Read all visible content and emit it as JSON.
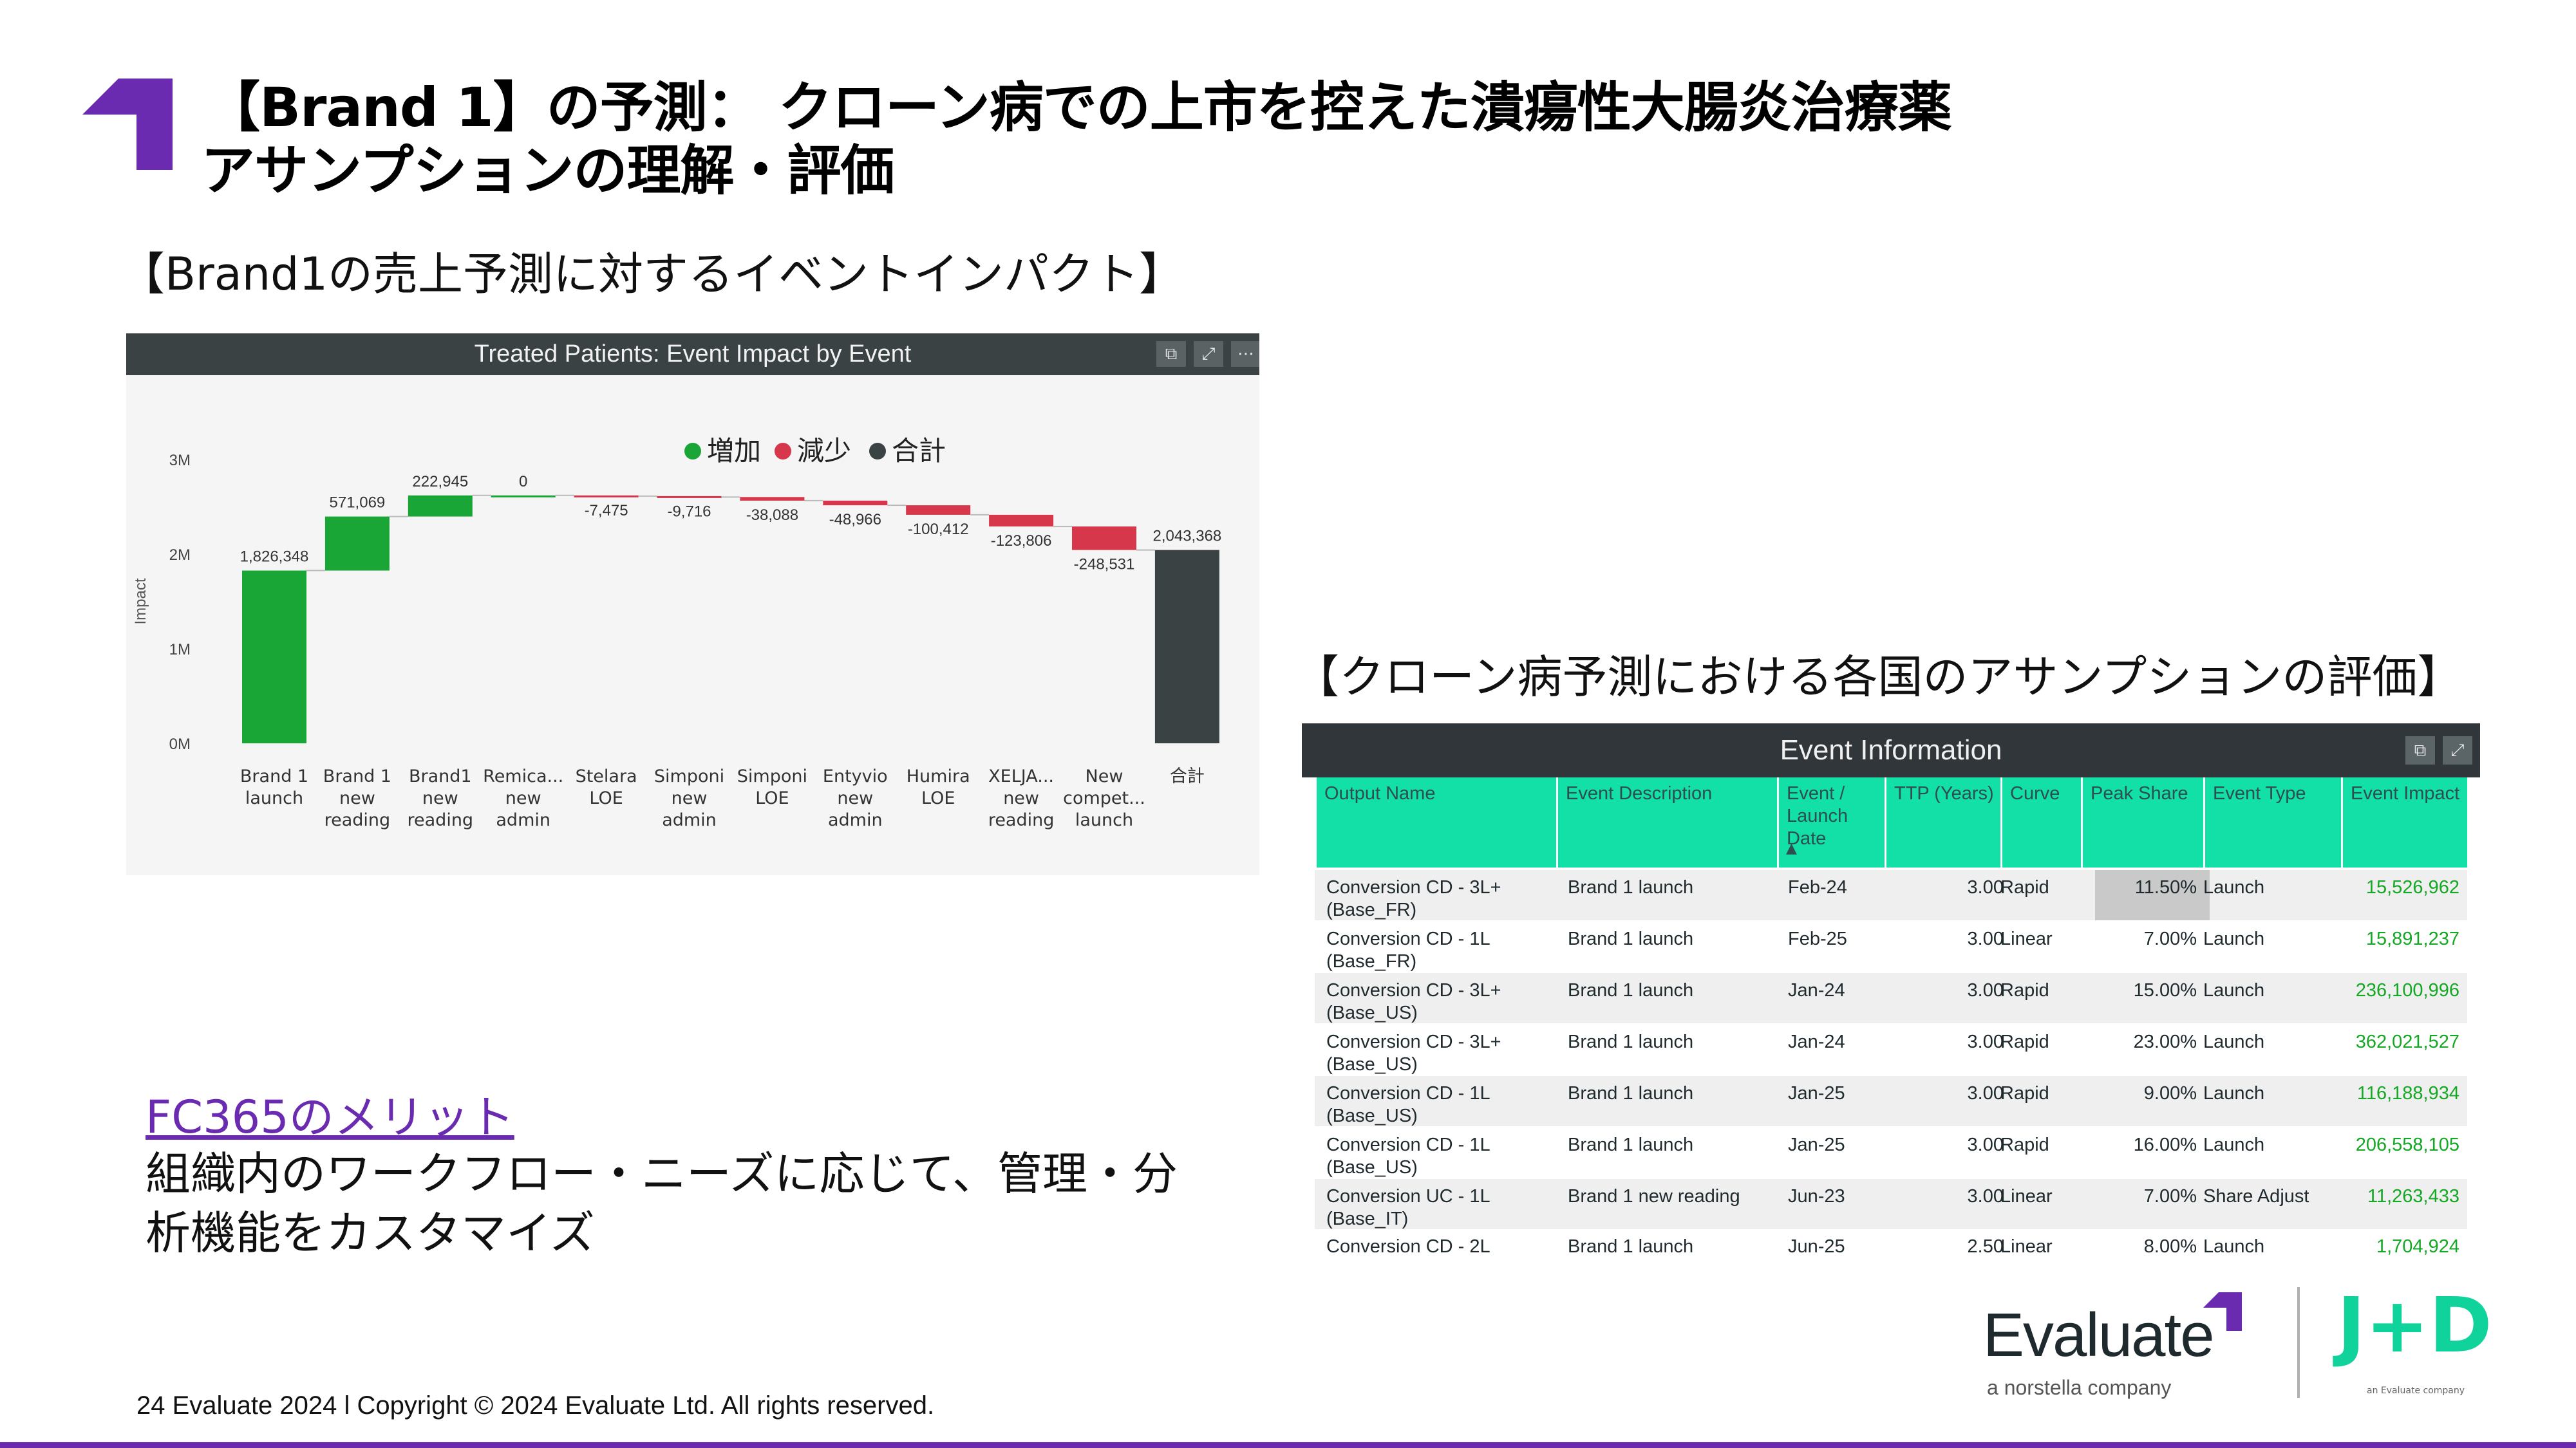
{
  "title": {
    "line1": "【Brand 1】の予測： クローン病での上市を控えた潰瘍性大腸炎治療薬",
    "line2": "アサンプションの理解・評価"
  },
  "section1_heading": "【Brand1の売上予測に対するイベントインパクト】",
  "section2_heading": "【クローン病予測における各国のアサンプションの評価】",
  "benefit": {
    "link": "FC365のメリット",
    "line1": "組織内のワークフロー・ニーズに応じて、管理・分",
    "line2": "析機能をカスタマイズ"
  },
  "footer": "24  Evaluate 2024      l      Copyright © 2024 Evaluate Ltd. All rights reserved.",
  "logos": {
    "evaluate": "Evaluate",
    "evaluate_sub": "a norstella company",
    "jd": "J+D",
    "jd_sub": "an Evaluate company"
  },
  "colors": {
    "increase": "#1aa637",
    "decrease": "#d7374a",
    "total": "#3b4244",
    "accent": "#6a2bb0",
    "table_header": "#12e0a6",
    "impact_green": "#15a824"
  },
  "icons": [
    "copy-icon",
    "expand-icon",
    "more-icon",
    "title-arrow-icon"
  ],
  "chart_data": {
    "type": "waterfall",
    "title": "Treated Patients: Event Impact by Event",
    "ylabel": "Impact",
    "ylim": [
      0,
      3000000
    ],
    "yticks": [
      "0M",
      "1M",
      "2M",
      "3M"
    ],
    "legend": [
      "増加",
      "減少",
      "合計"
    ],
    "legend_position": "top-center",
    "categories": [
      [
        "Brand 1",
        "launch"
      ],
      [
        "Brand 1",
        "new",
        "reading"
      ],
      [
        "Brand1",
        "new",
        "reading"
      ],
      [
        "Remica...",
        "new",
        "admin"
      ],
      [
        "Stelara",
        "LOE"
      ],
      [
        "Simponi",
        "new",
        "admin"
      ],
      [
        "Simponi",
        "LOE"
      ],
      [
        "Entyvio",
        "new",
        "admin"
      ],
      [
        "Humira",
        "LOE"
      ],
      [
        "XELJA...",
        "new",
        "reading"
      ],
      [
        "New",
        "compet...",
        "launch"
      ],
      [
        "合計"
      ]
    ],
    "values": [
      1826348,
      571069,
      222945,
      0,
      -7475,
      -9716,
      -38088,
      -48966,
      -100412,
      -123806,
      -248531,
      2043368
    ],
    "labels": [
      "1,826,348",
      "571,069",
      "222,945",
      "0",
      "-7,475",
      "-9,716",
      "-38,088",
      "-48,966",
      "-100,412",
      "-123,806",
      "-248,531",
      "2,043,368"
    ],
    "kinds": [
      "inc",
      "inc",
      "inc",
      "inc",
      "dec",
      "dec",
      "dec",
      "dec",
      "dec",
      "dec",
      "dec",
      "total"
    ]
  },
  "table": {
    "title": "Event Information",
    "columns": [
      "Output Name",
      "Event Description",
      "Event / Launch Date",
      "TTP (Years)",
      "Curve",
      "Peak Share",
      "Event Type",
      "Event Impact"
    ],
    "rows": [
      [
        "Conversion CD - 3L+ (Base_FR)",
        "Brand 1 launch",
        "Feb-24",
        "3.00",
        "Rapid",
        "11.50%",
        "Launch",
        "15,526,962"
      ],
      [
        "Conversion CD - 1L (Base_FR)",
        "Brand 1 launch",
        "Feb-25",
        "3.00",
        "Linear",
        "7.00%",
        "Launch",
        "15,891,237"
      ],
      [
        "Conversion CD - 3L+ (Base_US)",
        "Brand 1 launch",
        "Jan-24",
        "3.00",
        "Rapid",
        "15.00%",
        "Launch",
        "236,100,996"
      ],
      [
        "Conversion CD - 3L+ (Base_US)",
        "Brand 1 launch",
        "Jan-24",
        "3.00",
        "Rapid",
        "23.00%",
        "Launch",
        "362,021,527"
      ],
      [
        "Conversion CD - 1L (Base_US)",
        "Brand 1 launch",
        "Jan-25",
        "3.00",
        "Rapid",
        "9.00%",
        "Launch",
        "116,188,934"
      ],
      [
        "Conversion CD - 1L (Base_US)",
        "Brand 1 launch",
        "Jan-25",
        "3.00",
        "Rapid",
        "16.00%",
        "Launch",
        "206,558,105"
      ],
      [
        "Conversion UC - 1L (Base_IT)",
        "Brand 1 new reading",
        "Jun-23",
        "3.00",
        "Linear",
        "7.00%",
        "Share Adjust",
        "11,263,433"
      ],
      [
        "Conversion CD - 2L",
        "Brand 1 launch",
        "Jun-25",
        "2.50",
        "Linear",
        "8.00%",
        "Launch",
        "1,704,924"
      ]
    ]
  }
}
